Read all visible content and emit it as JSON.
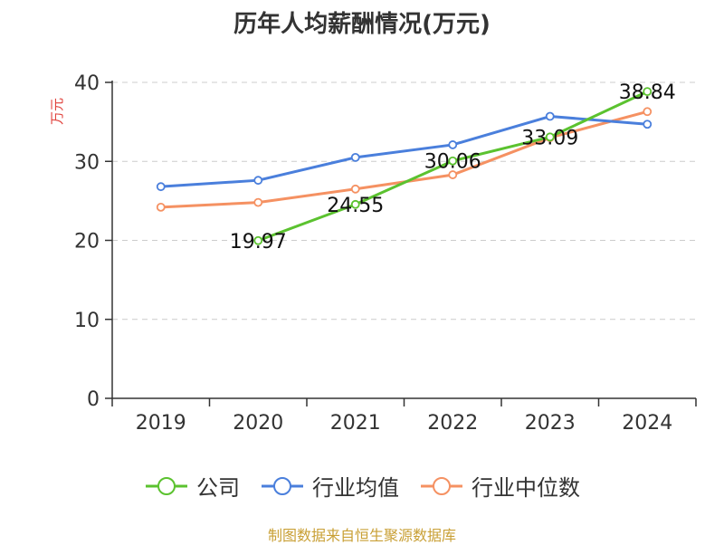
{
  "chart_data": {
    "type": "line",
    "title": "历年人均薪酬情况(万元)",
    "ylabel": "万元",
    "xlabel": "",
    "categories": [
      "2019",
      "2020",
      "2021",
      "2022",
      "2023",
      "2024"
    ],
    "ylim": [
      0,
      40
    ],
    "yticks": [
      0,
      10,
      20,
      30,
      40
    ],
    "grid": true,
    "legend_position": "bottom",
    "series": [
      {
        "name": "公司",
        "color": "#5bc22f",
        "values": [
          null,
          19.97,
          24.55,
          30.06,
          33.09,
          38.84
        ],
        "labels": [
          null,
          "19.97",
          "24.55",
          "30.06",
          "33.09",
          "38.84"
        ]
      },
      {
        "name": "行业均值",
        "color": "#4a7fdc",
        "values": [
          26.8,
          27.6,
          30.5,
          32.1,
          35.7,
          34.7
        ]
      },
      {
        "name": "行业中位数",
        "color": "#f59162",
        "values": [
          24.2,
          24.8,
          26.5,
          28.3,
          33.0,
          36.3
        ]
      }
    ]
  },
  "source_note": "制图数据来自恒生聚源数据库"
}
